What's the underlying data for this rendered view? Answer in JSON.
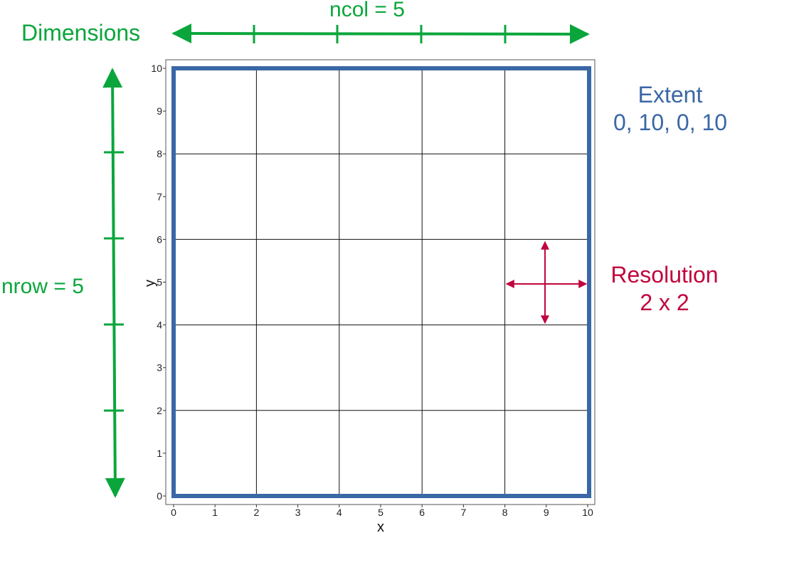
{
  "diagram": {
    "axes": {
      "x_label": "x",
      "y_label": "y",
      "x_range": [
        0,
        10
      ],
      "y_range": [
        0,
        10
      ],
      "x_ticks": [
        "0",
        "1",
        "2",
        "3",
        "4",
        "5",
        "6",
        "7",
        "8",
        "9",
        "10"
      ],
      "y_ticks": [
        "0",
        "1",
        "2",
        "3",
        "4",
        "5",
        "6",
        "7",
        "8",
        "9",
        "10"
      ],
      "grid_step": 2
    },
    "dimensions": {
      "label": "Dimensions",
      "ncol_label": "ncol = 5",
      "nrow_label": "nrow = 5",
      "color": "#0aa63c"
    },
    "extent": {
      "title": "Extent",
      "values": "0, 10, 0, 10",
      "color": "#3a67a6"
    },
    "resolution": {
      "title": "Resolution",
      "values": "2 x 2",
      "color": "#c0063e"
    }
  }
}
